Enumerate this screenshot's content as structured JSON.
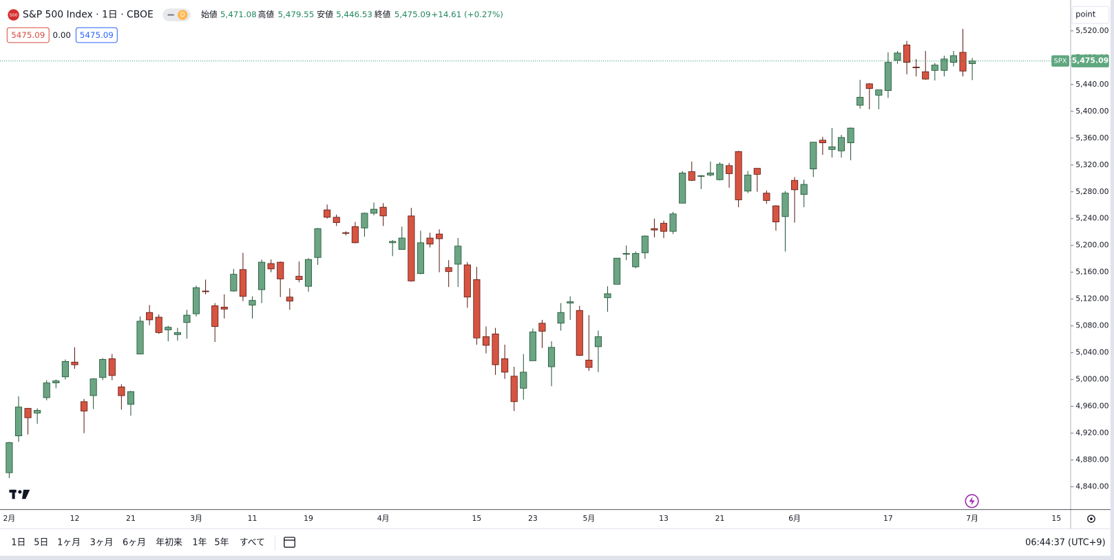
{
  "header": {
    "logo": "500",
    "title": "S&P 500 Index · 1日 · CBOE",
    "interval": "D",
    "ohlc": [
      {
        "label": "始値",
        "value": "5,471.08"
      },
      {
        "label": "高値",
        "value": "5,479.55"
      },
      {
        "label": "安値",
        "value": "5,446.53"
      },
      {
        "label": "終値",
        "value": "5,475.09"
      }
    ],
    "change": "+14.61 (+0.27%)"
  },
  "legend_row": [
    "5475.09",
    "0.00",
    "5475.09"
  ],
  "scale_mode": "point",
  "symbol_tag": "SPX",
  "last_price_label": "5,475.09",
  "chart_data": {
    "type": "candlestick",
    "categories": [
      "2月",
      null,
      null,
      null,
      null,
      null,
      null,
      "12",
      null,
      null,
      null,
      null,
      null,
      "21",
      null,
      null,
      null,
      null,
      null,
      null,
      "3月",
      null,
      null,
      null,
      null,
      null,
      "11",
      null,
      null,
      null,
      null,
      null,
      "19",
      null,
      null,
      null,
      null,
      null,
      null,
      null,
      "4月",
      null,
      null,
      null,
      null,
      null,
      null,
      null,
      null,
      null,
      "15",
      null,
      null,
      null,
      null,
      null,
      "23",
      null,
      null,
      null,
      null,
      null,
      "5月",
      null,
      null,
      null,
      null,
      null,
      null,
      null,
      "13",
      null,
      null,
      null,
      null,
      null,
      "21",
      null,
      null,
      null,
      null,
      null,
      null,
      null,
      "6月",
      null,
      null,
      null,
      null,
      null,
      null,
      null,
      null,
      null,
      "17",
      null,
      null,
      null,
      null,
      null,
      null,
      null,
      null,
      "7月"
    ],
    "open": [
      4861,
      4916,
      4957,
      4950,
      4973,
      4995,
      5004,
      5026,
      4967,
      4976,
      5003,
      5031,
      4989,
      4963,
      5038,
      5100,
      5093,
      5074,
      5067,
      5085,
      5098,
      5132,
      5110,
      5108,
      5132,
      5164,
      5111,
      5134,
      5173,
      5175,
      5123,
      5154,
      5139,
      5182,
      5253,
      5242,
      5219,
      5228,
      5226,
      5248,
      5257,
      5204,
      5194,
      5244,
      5158,
      5211,
      5217,
      5167,
      5172,
      5171,
      5149,
      5064,
      5068,
      5031,
      5005,
      4987,
      5028,
      5084,
      5019,
      5084,
      5114,
      5103,
      5029,
      5049,
      5122,
      5142,
      5187,
      5168,
      5189,
      5225,
      5233,
      5221,
      5263,
      5310,
      5303,
      5305,
      5298,
      5319,
      5340,
      5281,
      5315,
      5278,
      5259,
      5243,
      5297,
      5276,
      5314,
      5357,
      5343,
      5341,
      5353,
      5409,
      5441,
      5424,
      5431,
      5476,
      5499,
      5466,
      5459,
      5461,
      5461,
      5473,
      5488,
      5471.08
    ],
    "high": [
      4907,
      4975,
      4957,
      4957,
      4999,
      5000,
      5030,
      5048,
      4971,
      5002,
      5032,
      5038,
      4993,
      4983,
      5094,
      5111,
      5097,
      5080,
      5077,
      5104,
      5140,
      5149,
      5114,
      5127,
      5165,
      5189,
      5124,
      5179,
      5179,
      5176,
      5136,
      5176,
      5181,
      5226,
      5261,
      5246,
      5221,
      5235,
      5249,
      5264,
      5263,
      5208,
      5228,
      5256,
      5222,
      5219,
      5224,
      5178,
      5211,
      5175,
      5168,
      5079,
      5077,
      5052,
      5019,
      5038,
      5076,
      5089,
      5057,
      5114,
      5124,
      5110,
      5096,
      5073,
      5139,
      5181,
      5200,
      5191,
      5215,
      5240,
      5237,
      5250,
      5311,
      5325,
      5305,
      5325,
      5324,
      5323,
      5341,
      5311,
      5315,
      5282,
      5260,
      5281,
      5302,
      5298,
      5354,
      5362,
      5375,
      5365,
      5376,
      5447,
      5442,
      5432,
      5488,
      5490,
      5505,
      5478,
      5490,
      5472,
      5483,
      5490,
      5523,
      5479.55
    ],
    "low": [
      4853,
      4907,
      4918,
      4934,
      4969,
      4987,
      5000,
      5016,
      4920,
      4956,
      4999,
      4999,
      4955,
      4946,
      5038,
      5081,
      5068,
      5057,
      5058,
      5061,
      5094,
      5127,
      5056,
      5091,
      5131,
      5117,
      5091,
      5114,
      5160,
      5123,
      5104,
      5145,
      5131,
      5171,
      5240,
      5229,
      5215,
      5203,
      5213,
      5245,
      5229,
      5184,
      5194,
      5146,
      5157,
      5197,
      5160,
      5138,
      5138,
      5107,
      5052,
      5039,
      5007,
      5001,
      4953,
      4970,
      5028,
      5047,
      4990,
      5073,
      5089,
      5035,
      5013,
      5011,
      5101,
      5142,
      5178,
      5166,
      5180,
      5212,
      5211,
      5217,
      5263,
      5296,
      5284,
      5303,
      5297,
      5286,
      5257,
      5278,
      5280,
      5262,
      5222,
      5191,
      5234,
      5257,
      5302,
      5335,
      5331,
      5331,
      5327,
      5404,
      5403,
      5403,
      5420,
      5471,
      5455,
      5452,
      5447,
      5446,
      5452,
      5467,
      5452,
      5446.53
    ],
    "close": [
      4906,
      4959,
      4943,
      4954,
      4995,
      4998,
      5027,
      5022,
      4953,
      5001,
      5030,
      5006,
      4976,
      4982,
      5087,
      5089,
      5070,
      5078,
      5070,
      5096,
      5137,
      5131,
      5079,
      5105,
      5157,
      5124,
      5118,
      5175,
      5165,
      5150,
      5117,
      5149,
      5179,
      5225,
      5242,
      5234,
      5218,
      5204,
      5248,
      5254,
      5244,
      5206,
      5211,
      5147,
      5204,
      5202,
      5210,
      5161,
      5199,
      5123,
      5062,
      5051,
      5022,
      5011,
      4967,
      5011,
      5071,
      5072,
      5048,
      5100,
      5116,
      5036,
      5018,
      5064,
      5128,
      5181,
      5188,
      5188,
      5214,
      5223,
      5221,
      5247,
      5308,
      5297,
      5304,
      5308,
      5321,
      5307,
      5268,
      5305,
      5306,
      5267,
      5235,
      5278,
      5283,
      5291,
      5354,
      5353,
      5347,
      5361,
      5375,
      5421,
      5434,
      5432,
      5473,
      5487,
      5473,
      5465,
      5448,
      5469,
      5478,
      5483,
      5460,
      5475.09
    ],
    "up_color": "#6ba583",
    "up_border": "#225437",
    "down_color": "#d75442",
    "down_border": "#5b1a13",
    "ylim": [
      4806,
      5566
    ],
    "yticks": [
      {
        "value": 4840,
        "label": "4,840.00"
      },
      {
        "value": 4880,
        "label": "4,880.00"
      },
      {
        "value": 4920,
        "label": "4,920.00"
      },
      {
        "value": 4960,
        "label": "4,960.00"
      },
      {
        "value": 5000,
        "label": "5,000.00"
      },
      {
        "value": 5040,
        "label": "5,040.00"
      },
      {
        "value": 5080,
        "label": "5,080.00"
      },
      {
        "value": 5120,
        "label": "5,120.00"
      },
      {
        "value": 5160,
        "label": "5,160.00"
      },
      {
        "value": 5200,
        "label": "5,200.00"
      },
      {
        "value": 5240,
        "label": "5,240.00"
      },
      {
        "value": 5280,
        "label": "5,280.00"
      },
      {
        "value": 5320,
        "label": "5,320.00"
      },
      {
        "value": 5360,
        "label": "5,360.00"
      },
      {
        "value": 5400,
        "label": "5,400.00"
      },
      {
        "value": 5440,
        "label": "5,440.00"
      },
      {
        "value": 5480,
        "label": "5,480.00"
      },
      {
        "value": 5520,
        "label": "5,520.00"
      }
    ],
    "xticks": [
      {
        "value": 112,
        "label": "15"
      }
    ],
    "grid": false
  },
  "toolbar": {
    "ranges": [
      "1日",
      "5日",
      "1ヶ月",
      "3ヶ月",
      "6ヶ月",
      "年初来",
      "1年",
      "5年",
      "すべて"
    ],
    "clock": "06:44:37 (UTC+9)"
  }
}
